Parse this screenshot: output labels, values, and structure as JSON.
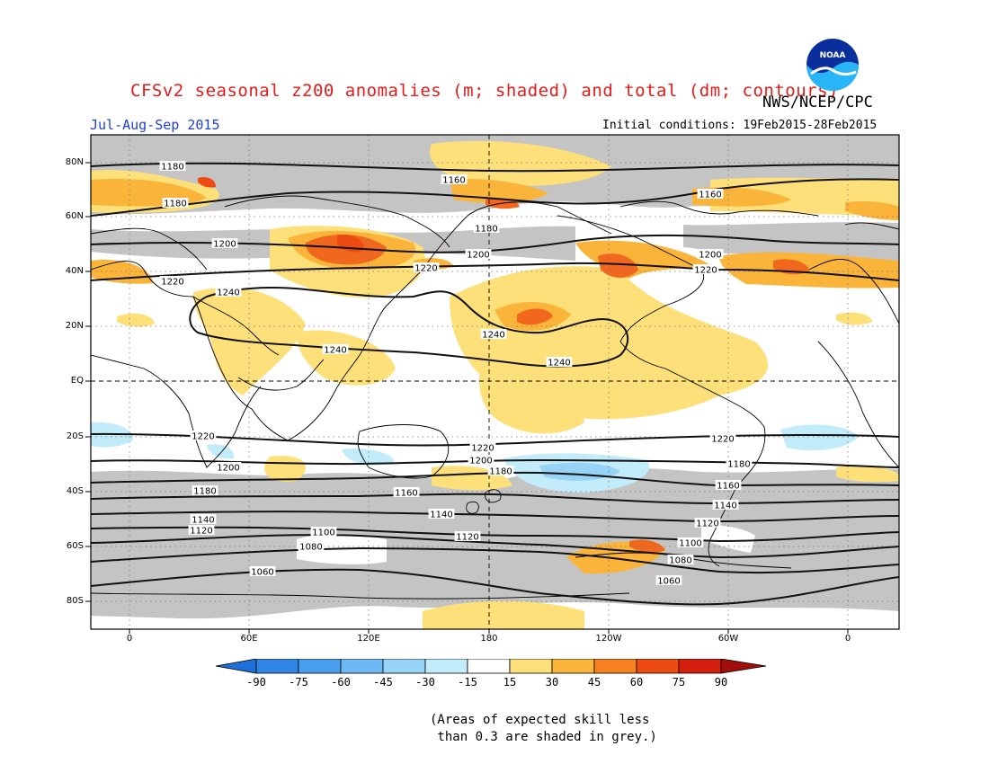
{
  "header": {
    "title": "CFSv2 seasonal z200 anomalies (m; shaded) and total (dm; contours)",
    "agency": "NWS/NCEP/CPC",
    "season": "Jul-Aug-Sep 2015",
    "initial_conditions": "Initial conditions: 19Feb2015-28Feb2015",
    "logo_text": "NOAA"
  },
  "map": {
    "lat_labels": [
      "80N",
      "60N",
      "40N",
      "20N",
      "EQ",
      "20S",
      "40S",
      "60S",
      "80S"
    ],
    "lon_labels": [
      "0",
      "60E",
      "120E",
      "180",
      "120W",
      "60W",
      "0"
    ],
    "contour_labels": [
      "1180",
      "1160",
      "1180",
      "1160",
      "1180",
      "1200",
      "1200",
      "1200",
      "1220",
      "1220",
      "1220",
      "1240",
      "1240",
      "1240",
      "1240",
      "1220",
      "1220",
      "1220",
      "1200",
      "1200",
      "1180",
      "1180",
      "1180",
      "1160",
      "1160",
      "1140",
      "1140",
      "1140",
      "1120",
      "1120",
      "1120",
      "1100",
      "1100",
      "1080",
      "1080",
      "1060",
      "1060"
    ]
  },
  "colorbar": {
    "labels": [
      "-90",
      "-75",
      "-60",
      "-45",
      "-30",
      "-15",
      "15",
      "30",
      "45",
      "60",
      "75",
      "90"
    ],
    "colors": [
      "#1e6fd8",
      "#2f86e6",
      "#4aa0ef",
      "#6db9f3",
      "#97d3f7",
      "#c2ecf9",
      "#ffffff",
      "#fde07a",
      "#fbb43a",
      "#f7811f",
      "#ee4b13",
      "#d41e0e",
      "#a20d0a"
    ]
  },
  "colors": {
    "title": "#e21b1b",
    "season": "#1f3fd6",
    "grey_skill": "#c4c4c4"
  },
  "footnote": "(Areas of expected skill less\n than 0.3 are shaded in grey.)"
}
